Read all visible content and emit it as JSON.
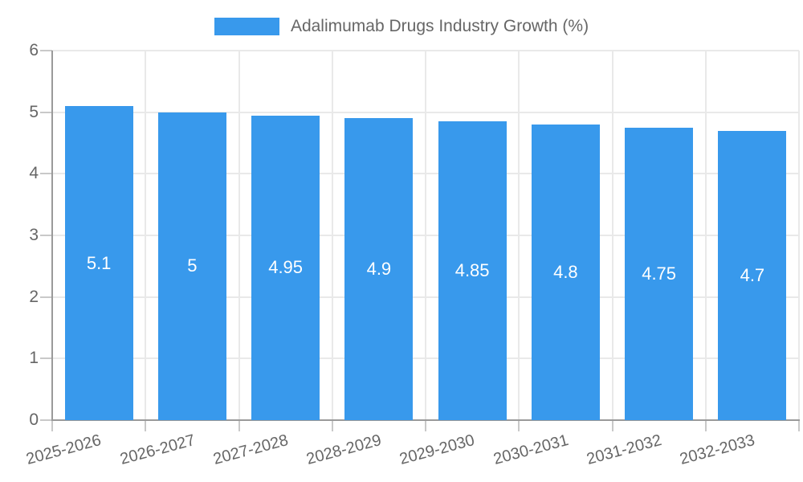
{
  "legend": {
    "label": "Adalimumab Drugs Industry Growth (%)"
  },
  "colors": {
    "bar": "#3899EC",
    "grid": "#E9E9E9",
    "axis": "#9A9A9A",
    "tick": "#C9C9C9",
    "text": "#666666",
    "value_label": "#FFFFFF",
    "background": "#FFFFFF"
  },
  "chart_data": {
    "type": "bar",
    "title": "Adalimumab Drugs Industry Growth (%)",
    "categories": [
      "2025-2026",
      "2026-2027",
      "2027-2028",
      "2028-2029",
      "2029-2030",
      "2030-2031",
      "2031-2032",
      "2032-2033"
    ],
    "values": [
      5.1,
      5,
      4.95,
      4.9,
      4.85,
      4.8,
      4.75,
      4.7
    ],
    "value_labels": [
      "5.1",
      "5",
      "4.95",
      "4.9",
      "4.85",
      "4.8",
      "4.75",
      "4.7"
    ],
    "xlabel": "",
    "ylabel": "",
    "ylim": [
      0,
      6
    ],
    "yticks": [
      0,
      1,
      2,
      3,
      4,
      5,
      6
    ],
    "grid": true,
    "legend_position": "top",
    "data_labels": "inside-center-white"
  }
}
